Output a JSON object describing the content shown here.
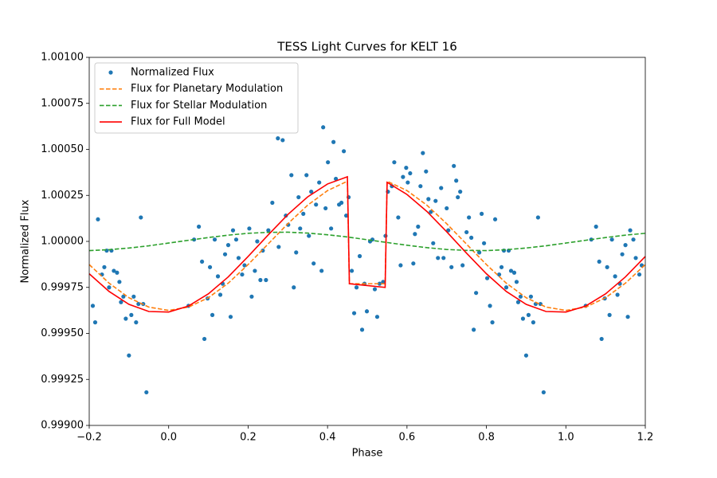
{
  "chart_data": {
    "type": "line",
    "title": "TESS Light Curves for KELT 16",
    "xlabel": "Phase",
    "ylabel": "Normalized Flux",
    "xlim": [
      -0.2,
      1.2
    ],
    "ylim": [
      0.999,
      1.001
    ],
    "xticks": [
      {
        "value": -0.2,
        "label": "−0.2"
      },
      {
        "value": 0,
        "label": "0.0"
      },
      0.2,
      0.4,
      0.6,
      0.8,
      {
        "value": 1,
        "label": "1.0"
      },
      1.2
    ],
    "yticks": [
      {
        "value": 0.999,
        "label": "0.99900"
      },
      {
        "value": 0.99925,
        "label": "0.99925"
      },
      {
        "value": 0.9995,
        "label": "0.99950"
      },
      {
        "value": 0.99975,
        "label": "0.99975"
      },
      {
        "value": 1,
        "label": "1.00000"
      },
      {
        "value": 1.00025,
        "label": "1.00025"
      },
      {
        "value": 1.0005,
        "label": "1.00050"
      },
      {
        "value": 1.00075,
        "label": "1.00075"
      },
      {
        "value": 1.001,
        "label": "1.00100"
      }
    ],
    "grid": false,
    "legend": "upper left",
    "series": [
      {
        "name": "Normalized Flux",
        "type": "scatter",
        "color": "#1f77b4",
        "x": [
          -0.191,
          -0.185,
          -0.178,
          -0.168,
          -0.162,
          -0.156,
          -0.15,
          -0.144,
          -0.138,
          -0.13,
          -0.124,
          -0.12,
          -0.114,
          -0.108,
          -0.1,
          -0.094,
          -0.088,
          -0.082,
          -0.076,
          -0.07,
          -0.064,
          -0.056,
          0.05,
          0.064,
          0.076,
          0.084,
          0.09,
          0.098,
          0.104,
          0.11,
          0.116,
          0.124,
          0.13,
          0.136,
          0.142,
          0.15,
          0.156,
          0.162,
          0.17,
          0.176,
          0.185,
          0.191,
          0.203,
          0.209,
          0.217,
          0.223,
          0.231,
          0.237,
          0.245,
          0.251,
          0.261,
          0.275,
          0.277,
          0.287,
          0.295,
          0.301,
          0.309,
          0.315,
          0.321,
          0.327,
          0.331,
          0.339,
          0.347,
          0.353,
          0.359,
          0.365,
          0.371,
          0.379,
          0.385,
          0.389,
          0.395,
          0.401,
          0.409,
          0.415,
          0.421,
          0.429,
          0.435,
          0.441,
          0.447,
          0.453,
          0.461,
          0.467,
          0.473,
          0.481,
          0.487,
          0.493,
          0.499,
          0.507,
          0.513,
          0.519,
          0.525,
          0.531,
          0.54,
          0.546,
          0.552,
          0.562,
          0.568,
          0.578,
          0.584,
          0.59,
          0.598,
          0.602,
          0.608,
          0.616,
          0.62,
          0.628,
          0.634,
          0.64,
          0.648,
          0.654,
          0.66,
          0.666,
          0.672,
          0.678,
          0.686,
          0.692,
          0.7,
          0.704,
          0.712,
          0.718,
          0.724,
          0.728,
          0.734,
          0.74,
          0.75,
          0.756,
          0.762,
          0.768,
          0.774,
          0.782,
          0.788,
          0.794,
          0.802,
          0.809,
          0.815,
          0.822,
          0.832,
          0.838,
          0.844,
          0.85,
          0.856,
          0.862,
          0.87,
          0.876,
          0.88,
          0.886,
          0.892,
          0.9,
          0.906,
          0.912,
          0.918,
          0.924,
          0.93,
          0.936,
          0.944,
          1.05,
          1.064,
          1.076,
          1.084,
          1.09,
          1.098,
          1.104,
          1.11,
          1.116,
          1.124,
          1.13,
          1.136,
          1.142,
          1.15,
          1.156,
          1.162,
          1.17,
          1.176,
          1.185,
          1.191
        ],
        "values": [
          0.99965,
          0.99956,
          1.00012,
          0.99982,
          0.99986,
          0.99995,
          0.99975,
          0.99995,
          0.99984,
          0.99983,
          0.99978,
          0.99967,
          0.9997,
          0.99958,
          0.99938,
          0.9996,
          0.9997,
          0.99956,
          0.99966,
          1.00013,
          0.99966,
          0.99918,
          0.99965,
          1.00001,
          1.00008,
          0.99989,
          0.99947,
          0.99969,
          0.99986,
          0.9996,
          1.00001,
          0.99981,
          0.99971,
          0.99977,
          0.99993,
          0.99998,
          0.99959,
          1.00006,
          1.00001,
          0.99991,
          0.99982,
          0.99987,
          1.00007,
          0.9997,
          0.99984,
          1.0,
          0.99979,
          0.99995,
          0.99979,
          1.00006,
          1.00021,
          1.00056,
          0.99997,
          1.00055,
          1.00014,
          1.00009,
          1.00036,
          0.99975,
          0.99994,
          1.00024,
          1.00007,
          1.00015,
          1.00036,
          1.00003,
          1.00027,
          0.99988,
          1.0002,
          1.00032,
          0.99984,
          1.00062,
          1.00018,
          1.00043,
          1.00007,
          1.00054,
          1.00034,
          1.0002,
          1.00021,
          1.00049,
          1.00014,
          1.00024,
          0.99984,
          0.99961,
          0.99975,
          0.99992,
          0.99952,
          0.99977,
          0.99962,
          1.0,
          1.00001,
          0.99974,
          0.99959,
          0.99977,
          0.99978,
          1.00003,
          1.00027,
          1.0003,
          1.00043,
          1.00013,
          0.99987,
          1.00035,
          1.0004,
          1.00032,
          1.00037,
          0.99988,
          1.00004,
          1.00008,
          1.0003,
          1.00048,
          1.00038,
          1.00023,
          1.00016,
          0.99999,
          1.00022,
          0.99991,
          1.00029,
          0.99991,
          1.00018,
          1.00006,
          0.99986,
          1.00041,
          1.00033,
          1.00024,
          1.00027,
          0.99987,
          1.00005,
          1.00013,
          1.00002,
          0.99952,
          0.99972,
          0.99994,
          1.00015,
          0.99999,
          0.9998,
          0.99965,
          0.99956,
          1.00012,
          0.99982,
          0.99986,
          0.99995,
          0.99975,
          0.99995,
          0.99984,
          0.99983,
          0.99978,
          0.99967,
          0.9997,
          0.99958,
          0.99938,
          0.9996,
          0.9997,
          0.99956,
          0.99966,
          1.00013,
          0.99966,
          0.99918,
          0.99965,
          1.00001,
          1.00008,
          0.99989,
          0.99947,
          0.99969,
          0.99986,
          0.9996,
          1.00001,
          0.99981,
          0.99971,
          0.99977,
          0.99993,
          0.99998,
          0.99959,
          1.00006,
          1.00001,
          0.99991,
          0.99982,
          0.99987
        ]
      },
      {
        "name": "Flux for Planetary Modulation",
        "type": "line",
        "linestyle": "dashed",
        "color": "#ff7f0e",
        "x": [
          -0.2,
          -0.15,
          -0.1,
          -0.05,
          0,
          0.05,
          0.1,
          0.15,
          0.2,
          0.25,
          0.3,
          0.35,
          0.4,
          0.45,
          0.455,
          0.5,
          0.545,
          0.55,
          0.6,
          0.65,
          0.7,
          0.75,
          0.8,
          0.85,
          0.9,
          0.95,
          1,
          1.05,
          1.1,
          1.15,
          1.2
        ],
        "values": [
          0.999874,
          0.999773,
          0.999694,
          0.999643,
          0.999625,
          0.999643,
          0.999694,
          0.999773,
          0.999874,
          0.999985,
          1.000096,
          1.000197,
          1.000276,
          1.000327,
          0.99977,
          0.99977,
          0.99977,
          1.000327,
          1.000276,
          1.000197,
          1.000096,
          0.999985,
          0.999874,
          0.999773,
          0.999694,
          0.999643,
          0.999625,
          0.999643,
          0.999694,
          0.999773,
          0.999874
        ]
      },
      {
        "name": "Flux for Stellar Modulation",
        "type": "line",
        "linestyle": "dashed",
        "color": "#2ca02c",
        "x": [
          -0.2,
          -0.15,
          -0.1,
          -0.05,
          0,
          0.05,
          0.1,
          0.15,
          0.2,
          0.25,
          0.3,
          0.35,
          0.4,
          0.45,
          0.5,
          0.55,
          0.6,
          0.65,
          0.7,
          0.75,
          0.8,
          0.85,
          0.9,
          0.95,
          1,
          1.05,
          1.1,
          1.15,
          1.2
        ],
        "values": [
          0.99995,
          0.999955,
          0.999964,
          0.999976,
          0.999991,
          1.000006,
          1.000021,
          1.000034,
          1.000044,
          1.000049,
          1.00005,
          1.000045,
          1.000036,
          1.000024,
          1.000009,
          0.999994,
          0.999979,
          0.999966,
          0.999956,
          0.999951,
          0.99995,
          0.999955,
          0.999964,
          0.999976,
          0.999991,
          1.000006,
          1.000021,
          1.000034,
          1.000044
        ]
      },
      {
        "name": "Flux for Full Model",
        "type": "line",
        "linestyle": "solid",
        "color": "#ff0000",
        "x": [
          -0.2,
          -0.15,
          -0.1,
          -0.05,
          0,
          0.05,
          0.1,
          0.15,
          0.2,
          0.25,
          0.3,
          0.35,
          0.4,
          0.45,
          0.455,
          0.5,
          0.545,
          0.55,
          0.6,
          0.65,
          0.7,
          0.75,
          0.8,
          0.85,
          0.9,
          0.95,
          1,
          1.05,
          1.1,
          1.15,
          1.2
        ],
        "values": [
          0.999824,
          0.999728,
          0.999658,
          0.999619,
          0.999616,
          0.999649,
          0.999715,
          0.999807,
          0.999918,
          1.000034,
          1.000146,
          1.000242,
          1.000312,
          1.000351,
          0.99977,
          0.99976,
          0.99975,
          1.000321,
          1.000255,
          1.000163,
          1.000052,
          0.999936,
          0.999824,
          0.999728,
          0.999658,
          0.999619,
          0.999616,
          0.999649,
          0.999715,
          0.999807,
          0.999918
        ]
      }
    ]
  }
}
